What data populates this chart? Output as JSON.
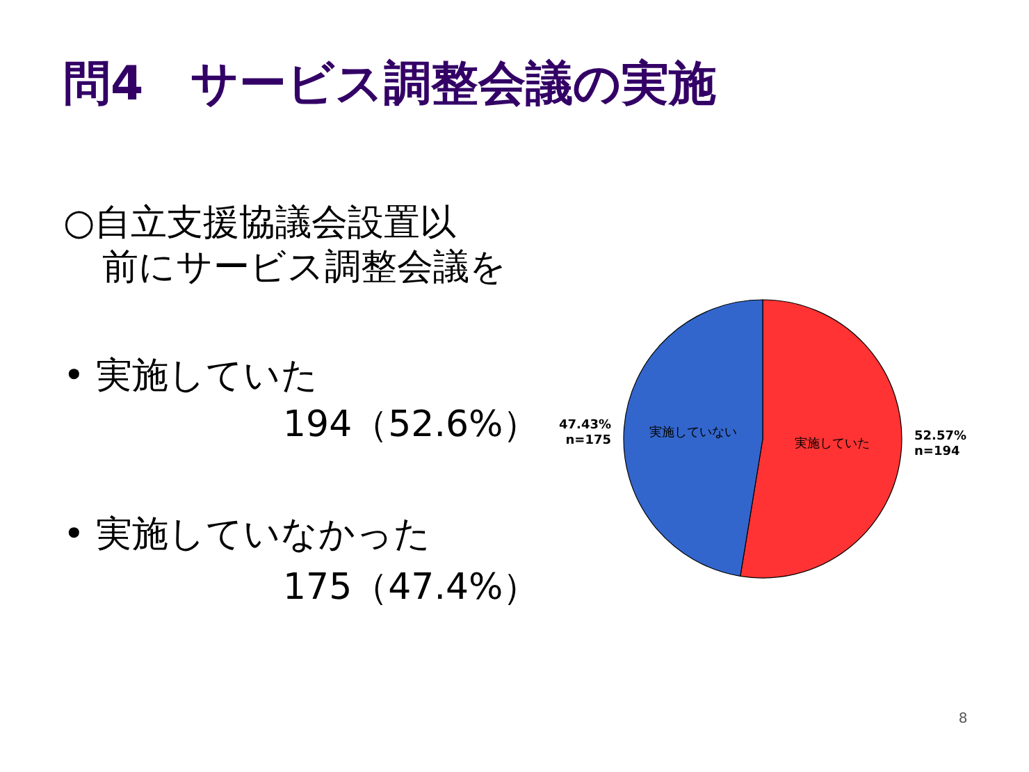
{
  "chart_data": {
    "type": "pie",
    "title": "問4　サービス調整会議の実施",
    "categories": [
      "実施していた",
      "実施していない"
    ],
    "values": [
      194,
      175
    ],
    "colors": [
      "#ff3333",
      "#3366cc"
    ],
    "value_labels": [
      "52.57%\nn=194",
      "47.43%\nn=175"
    ],
    "annotations": [
      "○自立支援協議会設置以前にサービス調整会議を",
      "• 実施していた",
      "194（52.6%）",
      "• 実施していなかった",
      "175（47.4%）",
      "8"
    ]
  }
}
